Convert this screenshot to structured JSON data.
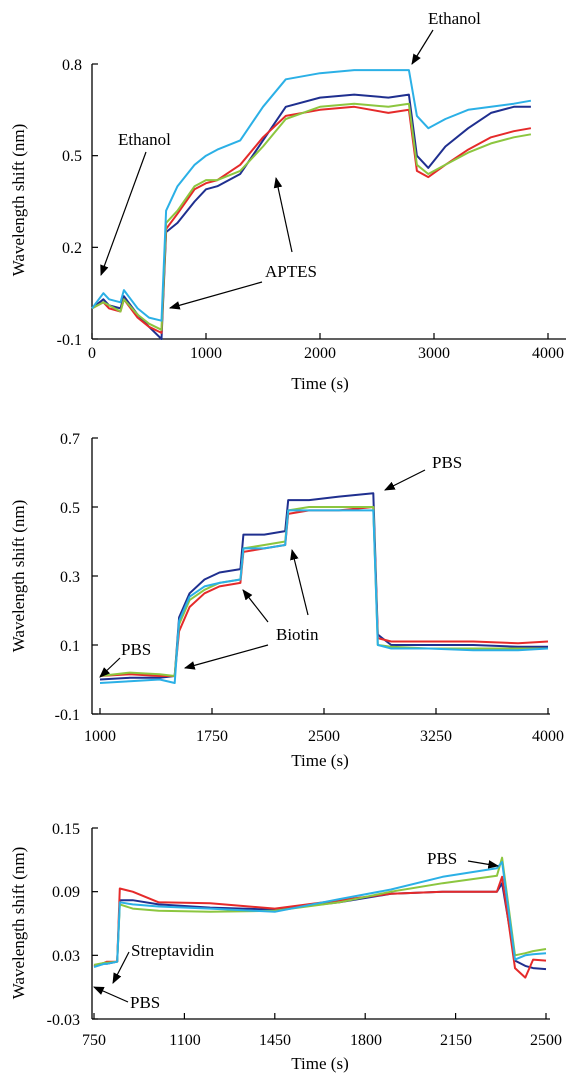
{
  "colors": {
    "blue": "#1f2f8f",
    "red": "#e52a2a",
    "green": "#8cc63f",
    "cyan": "#2bb0e6"
  },
  "chart_data": [
    {
      "type": "line",
      "xlabel": "Time (s)",
      "ylabel": "Wavelength shift (nm)",
      "xlim": [
        0,
        4000
      ],
      "ylim": [
        -0.1,
        0.8
      ],
      "xticks": [
        0,
        1000,
        2000,
        3000,
        4000
      ],
      "yticks": [
        -0.1,
        0.2,
        0.5,
        0.8
      ],
      "xtick_labels": [
        "0",
        "1000",
        "2000",
        "3000",
        "4000"
      ],
      "ytick_labels": [
        "-0.1",
        "0.2",
        "0.5",
        "0.8"
      ],
      "series": [
        {
          "color": "#1f2f8f",
          "x": [
            0,
            100,
            150,
            250,
            280,
            400,
            500,
            610,
            650,
            750,
            900,
            1000,
            1100,
            1300,
            1500,
            1700,
            2000,
            2300,
            2600,
            2780,
            2850,
            2950,
            3100,
            3300,
            3500,
            3700,
            3850
          ],
          "y": [
            0.0,
            0.03,
            0.01,
            0.0,
            0.04,
            -0.02,
            -0.06,
            -0.1,
            0.25,
            0.28,
            0.35,
            0.39,
            0.4,
            0.44,
            0.55,
            0.66,
            0.69,
            0.7,
            0.69,
            0.7,
            0.5,
            0.46,
            0.53,
            0.59,
            0.64,
            0.66,
            0.66
          ]
        },
        {
          "color": "#e52a2a",
          "x": [
            0,
            100,
            150,
            250,
            280,
            400,
            500,
            610,
            650,
            750,
            900,
            1000,
            1100,
            1300,
            1500,
            1700,
            2000,
            2300,
            2600,
            2780,
            2850,
            2950,
            3100,
            3300,
            3500,
            3700,
            3850
          ],
          "y": [
            0.0,
            0.02,
            0.0,
            -0.01,
            0.03,
            -0.03,
            -0.06,
            -0.08,
            0.26,
            0.31,
            0.39,
            0.41,
            0.42,
            0.47,
            0.56,
            0.63,
            0.65,
            0.66,
            0.64,
            0.65,
            0.45,
            0.43,
            0.47,
            0.52,
            0.56,
            0.58,
            0.59
          ]
        },
        {
          "color": "#8cc63f",
          "x": [
            0,
            100,
            150,
            250,
            280,
            400,
            500,
            610,
            650,
            750,
            900,
            1000,
            1100,
            1300,
            1500,
            1700,
            2000,
            2300,
            2600,
            2780,
            2850,
            2950,
            3100,
            3300,
            3500,
            3700,
            3850
          ],
          "y": [
            0.0,
            0.02,
            0.01,
            -0.01,
            0.03,
            -0.02,
            -0.05,
            -0.07,
            0.28,
            0.32,
            0.4,
            0.42,
            0.42,
            0.45,
            0.53,
            0.62,
            0.66,
            0.67,
            0.66,
            0.67,
            0.47,
            0.44,
            0.47,
            0.51,
            0.54,
            0.56,
            0.57
          ]
        },
        {
          "color": "#2bb0e6",
          "x": [
            0,
            100,
            150,
            250,
            280,
            400,
            500,
            610,
            650,
            750,
            900,
            1000,
            1100,
            1300,
            1500,
            1700,
            2000,
            2300,
            2600,
            2780,
            2850,
            2950,
            3100,
            3300,
            3500,
            3700,
            3850
          ],
          "y": [
            0.0,
            0.05,
            0.03,
            0.02,
            0.06,
            0.0,
            -0.03,
            -0.04,
            0.32,
            0.4,
            0.47,
            0.5,
            0.52,
            0.55,
            0.66,
            0.75,
            0.77,
            0.78,
            0.78,
            0.78,
            0.63,
            0.59,
            0.62,
            0.65,
            0.66,
            0.67,
            0.68
          ]
        }
      ],
      "annotations": [
        "Ethanol",
        "Ethanol",
        "APTES"
      ]
    },
    {
      "type": "line",
      "xlabel": "Time (s)",
      "ylabel": "Wavelength shift (nm)",
      "xlim": [
        1000,
        4000
      ],
      "ylim": [
        -0.1,
        0.7
      ],
      "xticks": [
        1000,
        1750,
        2500,
        3250,
        4000
      ],
      "yticks": [
        -0.1,
        0.1,
        0.3,
        0.5,
        0.7
      ],
      "xtick_labels": [
        "1000",
        "1750",
        "2500",
        "3250",
        "4000"
      ],
      "ytick_labels": [
        "-0.1",
        "0.1",
        "0.3",
        "0.5",
        "0.7"
      ],
      "series": [
        {
          "color": "#1f2f8f",
          "x": [
            1000,
            1200,
            1400,
            1500,
            1530,
            1600,
            1700,
            1800,
            1940,
            1960,
            2100,
            2240,
            2260,
            2400,
            2600,
            2830,
            2860,
            2950,
            3200,
            3500,
            3800,
            4000
          ],
          "y": [
            0.0,
            0.005,
            0.005,
            0.01,
            0.18,
            0.25,
            0.29,
            0.31,
            0.32,
            0.42,
            0.42,
            0.43,
            0.52,
            0.52,
            0.53,
            0.54,
            0.13,
            0.1,
            0.1,
            0.1,
            0.095,
            0.095
          ]
        },
        {
          "color": "#e52a2a",
          "x": [
            1000,
            1200,
            1400,
            1500,
            1530,
            1600,
            1700,
            1800,
            1940,
            1960,
            2100,
            2240,
            2260,
            2400,
            2600,
            2830,
            2860,
            2950,
            3200,
            3500,
            3800,
            4000
          ],
          "y": [
            0.01,
            0.015,
            0.01,
            0.01,
            0.14,
            0.21,
            0.25,
            0.27,
            0.28,
            0.37,
            0.38,
            0.39,
            0.48,
            0.49,
            0.49,
            0.5,
            0.12,
            0.11,
            0.11,
            0.11,
            0.105,
            0.11
          ]
        },
        {
          "color": "#8cc63f",
          "x": [
            1000,
            1200,
            1400,
            1500,
            1530,
            1600,
            1700,
            1800,
            1940,
            1960,
            2100,
            2240,
            2260,
            2400,
            2600,
            2830,
            2860,
            2950,
            3200,
            3500,
            3800,
            4000
          ],
          "y": [
            0.01,
            0.02,
            0.015,
            0.01,
            0.16,
            0.23,
            0.26,
            0.28,
            0.29,
            0.38,
            0.39,
            0.4,
            0.49,
            0.5,
            0.5,
            0.5,
            0.1,
            0.095,
            0.09,
            0.09,
            0.09,
            0.09
          ]
        },
        {
          "color": "#2bb0e6",
          "x": [
            1000,
            1200,
            1400,
            1500,
            1530,
            1600,
            1700,
            1800,
            1940,
            1960,
            2100,
            2240,
            2260,
            2400,
            2600,
            2830,
            2860,
            2950,
            3200,
            3500,
            3800,
            4000
          ],
          "y": [
            -0.01,
            -0.005,
            0.0,
            -0.01,
            0.17,
            0.24,
            0.27,
            0.28,
            0.29,
            0.38,
            0.38,
            0.39,
            0.49,
            0.49,
            0.49,
            0.49,
            0.1,
            0.09,
            0.09,
            0.085,
            0.085,
            0.09
          ]
        }
      ],
      "annotations": [
        "PBS",
        "PBS",
        "Biotin"
      ]
    },
    {
      "type": "line",
      "xlabel": "Time (s)",
      "ylabel": "Wavelength shift (nm)",
      "xlim": [
        750,
        2500
      ],
      "ylim": [
        -0.03,
        0.15
      ],
      "xticks": [
        750,
        1100,
        1450,
        1800,
        2150,
        2500
      ],
      "yticks": [
        -0.03,
        0.03,
        0.09,
        0.15
      ],
      "xtick_labels": [
        "750",
        "1100",
        "1450",
        "1800",
        "2150",
        "2500"
      ],
      "ytick_labels": [
        "-0.03",
        "0.03",
        "0.09",
        "0.15"
      ],
      "series": [
        {
          "color": "#1f2f8f",
          "x": [
            750,
            790,
            800,
            840,
            850,
            900,
            1000,
            1200,
            1450,
            1700,
            1900,
            2100,
            2310,
            2330,
            2380,
            2420,
            2450,
            2500
          ],
          "y": [
            0.02,
            0.022,
            0.022,
            0.024,
            0.082,
            0.082,
            0.078,
            0.075,
            0.073,
            0.08,
            0.088,
            0.09,
            0.09,
            0.098,
            0.025,
            0.02,
            0.018,
            0.017
          ]
        },
        {
          "color": "#e52a2a",
          "x": [
            750,
            790,
            800,
            840,
            850,
            900,
            1000,
            1200,
            1450,
            1700,
            1900,
            2100,
            2310,
            2330,
            2380,
            2420,
            2450,
            2500
          ],
          "y": [
            0.02,
            0.023,
            0.024,
            0.024,
            0.093,
            0.09,
            0.08,
            0.079,
            0.074,
            0.082,
            0.088,
            0.09,
            0.09,
            0.104,
            0.018,
            0.009,
            0.026,
            0.025
          ]
        },
        {
          "color": "#8cc63f",
          "x": [
            750,
            790,
            800,
            840,
            850,
            900,
            1000,
            1200,
            1450,
            1700,
            1900,
            2100,
            2310,
            2330,
            2380,
            2420,
            2450,
            2500
          ],
          "y": [
            0.021,
            0.023,
            0.023,
            0.024,
            0.078,
            0.074,
            0.072,
            0.071,
            0.072,
            0.08,
            0.09,
            0.098,
            0.105,
            0.122,
            0.03,
            0.032,
            0.034,
            0.036
          ]
        },
        {
          "color": "#2bb0e6",
          "x": [
            750,
            790,
            800,
            840,
            850,
            900,
            1000,
            1200,
            1450,
            1700,
            1900,
            2100,
            2310,
            2330,
            2380,
            2420,
            2450,
            2500
          ],
          "y": [
            0.019,
            0.022,
            0.022,
            0.024,
            0.08,
            0.078,
            0.076,
            0.074,
            0.071,
            0.083,
            0.092,
            0.104,
            0.112,
            0.118,
            0.026,
            0.03,
            0.031,
            0.032
          ]
        }
      ],
      "annotations": [
        "PBS",
        "Streptavidin",
        "PBS"
      ]
    }
  ]
}
